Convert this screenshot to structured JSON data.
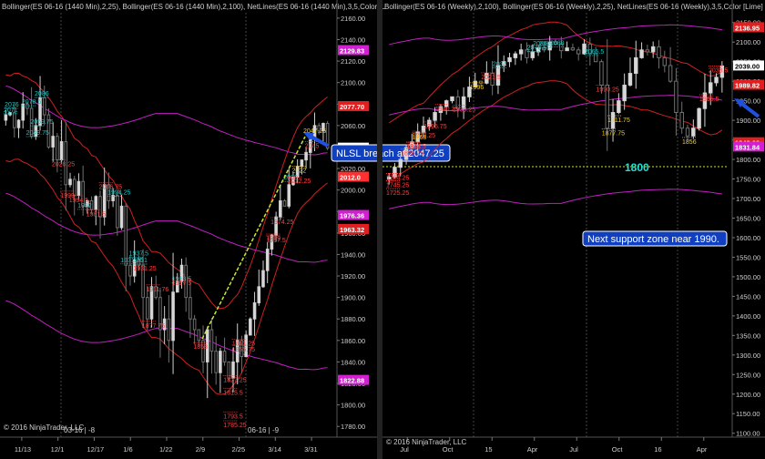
{
  "left_panel": {
    "header": "Bollinger(ES 06-16 (1440 Min),2,25), Bollinger(ES 06-16 (1440 Min),2,100), NetLines(ES 06-16 (1440 Min),3,5,Color [L",
    "footer": "© 2016 NinjaTrader, LLC",
    "contract_labels": [
      "03-16 | -8",
      "06-16 | -9"
    ],
    "callout": "NLSL breach at 2047.25",
    "callout_price": "2047.25",
    "y_ticks": [
      "2160.00",
      "2140.00",
      "2120.00",
      "2100.00",
      "2080.00",
      "2060.00",
      "2040.00",
      "2020.00",
      "2000.00",
      "1980.00",
      "1960.00",
      "1940.00",
      "1920.00",
      "1900.00",
      "1880.00",
      "1860.00",
      "1840.00",
      "1820.00",
      "1800.00",
      "1780.00"
    ],
    "x_ticks": [
      "11/13",
      "12/1",
      "12/17",
      "1/6",
      "1/22",
      "2/9",
      "2/25",
      "3/14",
      "3/31"
    ],
    "price_tags": [
      {
        "text": "2129.83",
        "color": "#d020d0"
      },
      {
        "text": "2077.70",
        "color": "#e02020"
      },
      {
        "text": "2039.0",
        "color": "#ffffff"
      },
      {
        "text": "2012.0",
        "color": "#ff3030"
      },
      {
        "text": "1976.36",
        "color": "#d020d0"
      },
      {
        "text": "1963.32",
        "color": "#e02020"
      },
      {
        "text": "1822.88",
        "color": "#d020d0"
      }
    ],
    "annotations": [
      {
        "text": "2078.5",
        "color": "#20c0c0"
      },
      {
        "text": "2076",
        "color": "#20c0c0"
      },
      {
        "text": "2071",
        "color": "#20c0c0"
      },
      {
        "text": "2049.75",
        "color": "#20c0c0"
      },
      {
        "text": "2059.75",
        "color": "#20c0c0"
      },
      {
        "text": "2086",
        "color": "#20c0c0"
      },
      {
        "text": "2045",
        "color": "#ff4040"
      },
      {
        "text": "2028.25",
        "color": "#ff4040"
      },
      {
        "text": "1994.5",
        "color": "#ff4040"
      },
      {
        "text": "1981.5",
        "color": "#ff4040"
      },
      {
        "text": "1974.25",
        "color": "#ff4040"
      },
      {
        "text": "2008",
        "color": "#20c0c0"
      },
      {
        "text": "1994.25",
        "color": "#20c0c0"
      },
      {
        "text": "1982",
        "color": "#20c0c0"
      },
      {
        "text": "1937.5",
        "color": "#20c0c0"
      },
      {
        "text": "1931.25",
        "color": "#20c0c0"
      },
      {
        "text": "1931",
        "color": "#20c0c0"
      },
      {
        "text": "1913.5",
        "color": "#20c0c0"
      },
      {
        "text": "1877.75",
        "color": "#ff4040"
      },
      {
        "text": "1861.25",
        "color": "#ff4040"
      },
      {
        "text": "1858",
        "color": "#ff4040"
      },
      {
        "text": "1855.75",
        "color": "#ff4040"
      },
      {
        "text": "1827.25",
        "color": "#ff4040"
      },
      {
        "text": "1815.5",
        "color": "#ff4040"
      },
      {
        "text": "1785.25",
        "color": "#ff4040"
      },
      {
        "text": "1793.5",
        "color": "#ff4040"
      },
      {
        "text": "2022",
        "color": "#ffd000"
      },
      {
        "text": "2012.25",
        "color": "#ff4040"
      },
      {
        "text": "2006.75",
        "color": "#ff4040"
      },
      {
        "text": "1999",
        "color": "#ff4040"
      },
      {
        "text": "1957.5",
        "color": "#ff4040"
      },
      {
        "text": "1931.25",
        "color": "#ff4040"
      },
      {
        "text": "1917.5",
        "color": "#ff4040"
      },
      {
        "text": "1911.76",
        "color": "#ff4040"
      },
      {
        "text": "1959",
        "color": "#ff4040"
      }
    ]
  },
  "right_panel": {
    "header": "Bollinger(ES 06-16 (Weekly),2,100), Bollinger(ES 06-16 (Weekly),2,25), NetLines(ES 06-16 (Weekly),3,5,Color [Lime]",
    "footer": "© 2016 NinjaTrader, LLC",
    "level_label": "1800",
    "callout": "Next support zone near 1990.",
    "y_ticks": [
      "2150.00",
      "2100.00",
      "2050.00",
      "2000.00",
      "1950.00",
      "1900.00",
      "1850.00",
      "1800.00",
      "1750.00",
      "1700.00",
      "1650.00",
      "1600.00",
      "1550.00",
      "1500.00",
      "1450.00",
      "1400.00",
      "1350.00",
      "1300.00",
      "1250.00",
      "1200.00",
      "1150.00",
      "1100.00"
    ],
    "x_ticks": [
      "Jul",
      "Oct",
      "15",
      "Apr",
      "Jul",
      "Oct",
      "16",
      "Apr"
    ],
    "price_tags": [
      {
        "text": "2136.95",
        "color": "#e02020"
      },
      {
        "text": "2039.00",
        "color": "#ffffff"
      },
      {
        "text": "1989.82",
        "color": "#e02020"
      },
      {
        "text": "1842.69",
        "color": "#e02020"
      },
      {
        "text": "1831.84",
        "color": "#d020d0"
      }
    ],
    "annotations": [
      {
        "text": "2076",
        "color": "#20c0c0"
      },
      {
        "text": "2075.5",
        "color": "#20c0c0"
      },
      {
        "text": "2085",
        "color": "#20c0c0"
      },
      {
        "text": "2086",
        "color": "#20c0c0"
      },
      {
        "text": "2088",
        "color": "#20c0c0"
      },
      {
        "text": "2065.5",
        "color": "#20c0c0"
      },
      {
        "text": "2034",
        "color": "#20c0c0"
      },
      {
        "text": "2038.5",
        "color": "#ff4040"
      },
      {
        "text": "2021.5",
        "color": "#ff4040"
      },
      {
        "text": "1990.25",
        "color": "#ff4040"
      },
      {
        "text": "1965.5",
        "color": "#ff4040"
      },
      {
        "text": "1940.25",
        "color": "#ff4040"
      },
      {
        "text": "1938.25",
        "color": "#ff4040"
      },
      {
        "text": "1895.75",
        "color": "#ff4040"
      },
      {
        "text": "1872.25",
        "color": "#ff4040"
      },
      {
        "text": "1844.5",
        "color": "#ff4040"
      },
      {
        "text": "1826.75",
        "color": "#ff4040"
      },
      {
        "text": "1843",
        "color": "#ff4040"
      },
      {
        "text": "1764.25",
        "color": "#ff4040"
      },
      {
        "text": "1745.25",
        "color": "#ff4040"
      },
      {
        "text": "1996",
        "color": "#ffd000"
      },
      {
        "text": "1911.75",
        "color": "#ffd000"
      },
      {
        "text": "1877.75",
        "color": "#ffd000"
      },
      {
        "text": "1856",
        "color": "#ffd000"
      },
      {
        "text": "1868",
        "color": "#ffd000"
      },
      {
        "text": "1725.25",
        "color": "#ff4040"
      }
    ]
  },
  "chart_data": [
    {
      "type": "candlestick",
      "instrument": "ES 06-16 (1440 Min)",
      "x_ticks": [
        "11/13",
        "12/1",
        "12/17",
        "1/6",
        "1/22",
        "2/9",
        "2/25",
        "3/14",
        "3/31"
      ],
      "ylim": [
        1770,
        2165
      ],
      "key_levels": {
        "nlsl_breach": 2047.25,
        "upper_bb25": 2077.7,
        "mid_bb100": 1976.36,
        "lower_bb25": 1963.32,
        "lower_bb100": 1822.88,
        "upper_bb100": 2129.83,
        "last": 2039.0
      },
      "close_path": [
        2070,
        2072,
        2058,
        2065,
        2080,
        2076,
        2050,
        2060,
        2086,
        2070,
        2040,
        2050,
        2028,
        2045,
        2005,
        2010,
        1995,
        2008,
        1985,
        1990,
        1982,
        1994,
        1975,
        2005,
        1990,
        1995,
        1965,
        1985,
        1930,
        1920,
        1935,
        1930,
        1900,
        1880,
        1910,
        1900,
        1870,
        1880,
        1860,
        1905,
        1915,
        1930,
        1900,
        1880,
        1870,
        1860,
        1840,
        1870,
        1850,
        1830,
        1850,
        1840,
        1825,
        1840,
        1860,
        1845,
        1865,
        1880,
        1895,
        1910,
        1925,
        1945,
        1958,
        1975,
        1990,
        1985,
        2005,
        2012,
        2022,
        2028,
        2035,
        2047,
        2060,
        2055,
        2062,
        2039
      ]
    },
    {
      "type": "candlestick",
      "instrument": "ES 06-16 (Weekly)",
      "x_ticks": [
        "Jul",
        "Oct",
        "15",
        "Apr",
        "Jul",
        "Oct",
        "16",
        "Apr"
      ],
      "ylim": [
        1090,
        2175
      ],
      "key_levels": {
        "support_1800": 1800,
        "next_support": 1990,
        "upper_bb": 2136.95,
        "bb_level_1989": 1989.82,
        "bb_level_1842": 1842.69,
        "bb_level_1831": 1831.84,
        "last": 2039.0
      },
      "close_path": [
        1755,
        1780,
        1800,
        1830,
        1845,
        1870,
        1885,
        1900,
        1920,
        1935,
        1950,
        1960,
        1930,
        1960,
        1985,
        2000,
        1995,
        2020,
        1990,
        2040,
        2050,
        2060,
        2070,
        2080,
        2060,
        2075,
        2085,
        2080,
        2100,
        2095,
        2078,
        2085,
        2080,
        2070,
        2095,
        2070,
        2050,
        1990,
        1880,
        1920,
        1950,
        1990,
        2020,
        2060,
        2080,
        2075,
        2088,
        2060,
        2040,
        2000,
        1920,
        1880,
        1860,
        1880,
        1930,
        1970,
        1996,
        2010,
        2039
      ]
    }
  ]
}
